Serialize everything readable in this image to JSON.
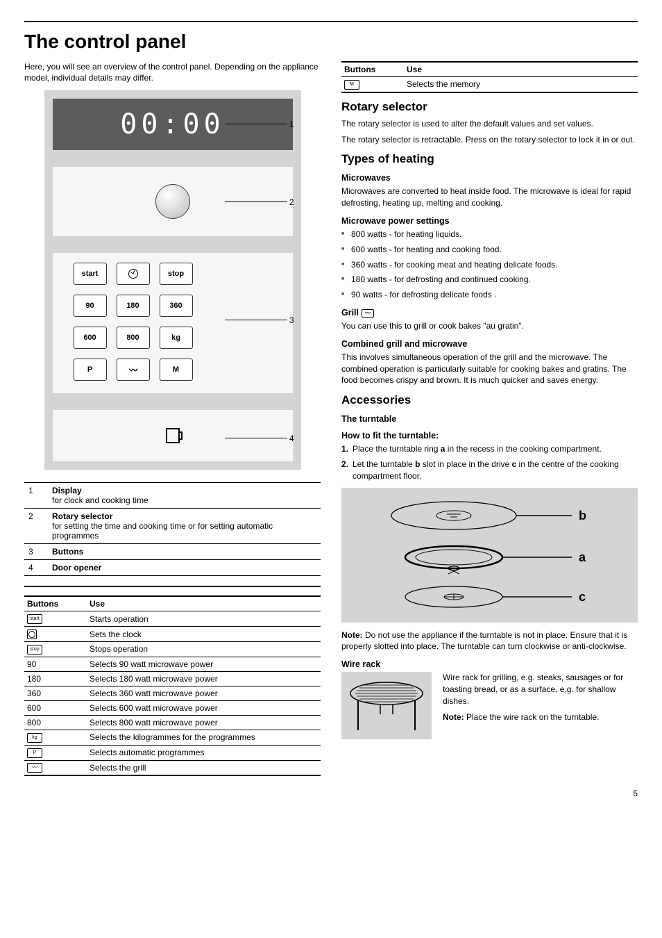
{
  "page": {
    "title": "The control panel",
    "intro": "Here, you will see an overview of the control panel. Depending on the appliance model, individual details may differ.",
    "number": "5"
  },
  "diagram": {
    "display_digits": "00:00",
    "button_rows": [
      [
        "start",
        "clock",
        "stop"
      ],
      [
        "90",
        "180",
        "360"
      ],
      [
        "600",
        "800",
        "kg"
      ],
      [
        "P",
        "grill",
        "M"
      ]
    ],
    "callouts": {
      "1": "1",
      "2": "2",
      "3": "3",
      "4": "4"
    },
    "colors": {
      "frame": "#d3d4d6",
      "display_bg": "#5a5c5e",
      "section_bg": "#f6f6f6"
    }
  },
  "legend": [
    {
      "num": "1",
      "title": "Display",
      "desc": "for clock and cooking time"
    },
    {
      "num": "2",
      "title": "Rotary selector",
      "desc": "for setting the time and cooking time or for setting automatic programmes"
    },
    {
      "num": "3",
      "title": "Buttons",
      "desc": ""
    },
    {
      "num": "4",
      "title": "Door opener",
      "desc": ""
    }
  ],
  "buttons_table": {
    "head_button": "Buttons",
    "head_use": "Use",
    "rows": [
      {
        "btn_type": "mini",
        "btn_label": "start",
        "use": "Starts operation"
      },
      {
        "btn_type": "clock",
        "btn_label": "",
        "use": "Sets the clock"
      },
      {
        "btn_type": "mini",
        "btn_label": "stop",
        "use": "Stops operation"
      },
      {
        "btn_type": "text",
        "btn_label": "90",
        "use": "Selects 90 watt microwave power"
      },
      {
        "btn_type": "text",
        "btn_label": "180",
        "use": "Selects 180 watt microwave power"
      },
      {
        "btn_type": "text",
        "btn_label": "360",
        "use": "Selects 360 watt microwave power"
      },
      {
        "btn_type": "text",
        "btn_label": "600",
        "use": "Selects 600 watt microwave power"
      },
      {
        "btn_type": "text",
        "btn_label": "800",
        "use": "Selects 800 watt microwave power"
      },
      {
        "btn_type": "mini",
        "btn_label": "kg",
        "use": "Selects the kilogrammes for the programmes"
      },
      {
        "btn_type": "mini",
        "btn_label": "P",
        "use": "Selects automatic programmes"
      },
      {
        "btn_type": "grill",
        "btn_label": "~~~",
        "use": "Selects the grill"
      }
    ]
  },
  "buttons_table_cont": {
    "head_button": "Buttons",
    "head_use": "Use",
    "rows": [
      {
        "btn_type": "mini",
        "btn_label": "M",
        "use": "Selects the memory"
      }
    ]
  },
  "rotary": {
    "title": "Rotary selector",
    "p1": "The rotary selector is used to alter the default values and set values.",
    "p2": "The rotary selector is retractable. Press on the rotary selector to lock it in or out."
  },
  "heating": {
    "title": "Types of heating",
    "microwaves_h": "Microwaves",
    "microwaves_p": "Microwaves are converted to heat inside food. The microwave is ideal for rapid defrosting, heating up, melting and cooking.",
    "power_h": "Microwave power settings",
    "power_list": [
      "800 watts - for heating liquids.",
      "600 watts - for heating and cooking food.",
      "360 watts - for cooking meat and heating delicate foods.",
      "180 watts - for defrosting and continued cooking.",
      "90 watts - for defrosting delicate foods ."
    ],
    "grill_h": "Grill",
    "grill_p": "You can use this to grill or cook bakes \"au gratin\".",
    "combo_h": "Combined grill and microwave",
    "combo_p": "This involves simultaneous operation of the grill and the microwave. The combined operation is particularly suitable for cooking bakes and gratins. The food becomes crispy and brown. It is much quicker and saves energy."
  },
  "accessories": {
    "title": "Accessories",
    "turntable_h": "The turntable",
    "howto_h": "How to fit the turntable:",
    "step1_pre": "Place the turntable ring ",
    "step1_a": "a",
    "step1_post": " in the recess in the cooking compartment.",
    "step2_pre": "Let the turntable ",
    "step2_b": "b",
    "step2_mid": " slot in place in the drive ",
    "step2_c": "c",
    "step2_post": " in the centre of the cooking compartment floor.",
    "labels": {
      "a": "a",
      "b": "b",
      "c": "c"
    },
    "note_label": "Note:",
    "note_text": " Do not use the appliance if the turntable is not in place. Ensure that it is properly slotted into place. The turntable can turn clockwise or anti-clockwise.",
    "wire_h": "Wire rack",
    "wire_p": "Wire rack for grilling, e.g. steaks, sausages or for toasting bread, or as a surface, e.g. for shallow dishes.",
    "wire_note_label": "Note:",
    "wire_note_text": " Place the wire rack on the turntable."
  }
}
